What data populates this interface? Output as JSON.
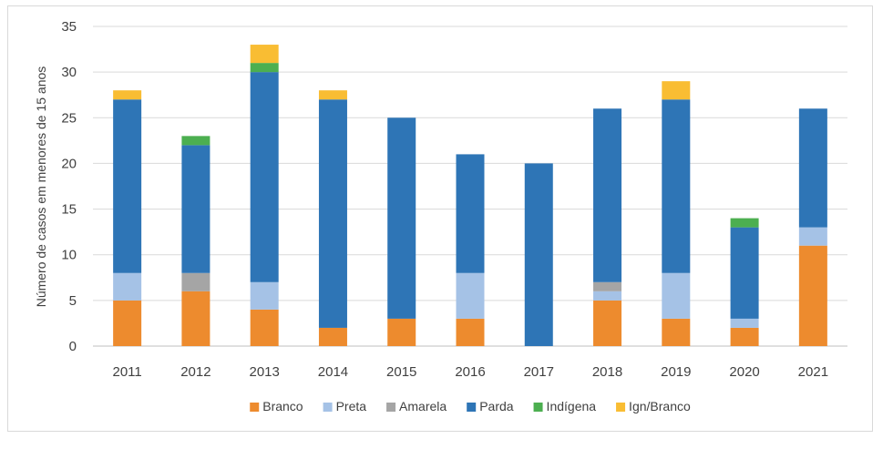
{
  "chart_data": {
    "type": "bar",
    "stacked": true,
    "title": "",
    "xlabel": "",
    "ylabel": "Número de casos em menores de 15 anos",
    "ylim": [
      0,
      35
    ],
    "yticks": [
      0,
      5,
      10,
      15,
      20,
      25,
      30,
      35
    ],
    "grid": true,
    "legend_position": "bottom",
    "categories": [
      "2011",
      "2012",
      "2013",
      "2014",
      "2015",
      "2016",
      "2017",
      "2018",
      "2019",
      "2020",
      "2021"
    ],
    "series": [
      {
        "name": "Branco",
        "color": "#ed8b2e",
        "values": [
          5,
          6,
          4,
          2,
          3,
          3,
          0,
          5,
          3,
          2,
          11
        ]
      },
      {
        "name": "Preta",
        "color": "#a5c2e6",
        "values": [
          3,
          0,
          3,
          0,
          0,
          5,
          0,
          1,
          5,
          1,
          2
        ]
      },
      {
        "name": "Amarela",
        "color": "#a5a5a5",
        "values": [
          0,
          2,
          0,
          0,
          0,
          0,
          0,
          1,
          0,
          0,
          0
        ]
      },
      {
        "name": "Parda",
        "color": "#2e75b6",
        "values": [
          19,
          14,
          23,
          25,
          22,
          13,
          20,
          19,
          19,
          10,
          13
        ]
      },
      {
        "name": "Indígena",
        "color": "#4caf50",
        "values": [
          0,
          1,
          1,
          0,
          0,
          0,
          0,
          0,
          0,
          1,
          0
        ]
      },
      {
        "name": "Ign/Branco",
        "color": "#f9bd33",
        "values": [
          1,
          0,
          2,
          1,
          0,
          0,
          0,
          0,
          2,
          0,
          0
        ]
      }
    ]
  }
}
